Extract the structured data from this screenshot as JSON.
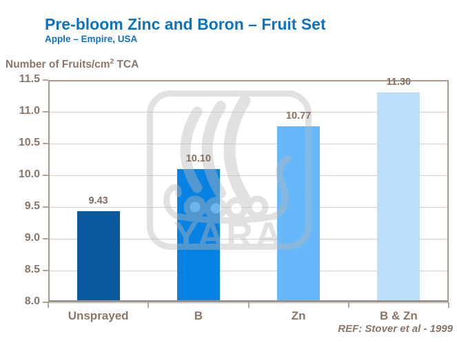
{
  "header": {
    "title": "Pre-bloom Zinc and Boron – Fruit Set",
    "subtitle": "Apple – Empire, USA"
  },
  "axis_title": {
    "prefix": "Number of Fruits/cm",
    "sup": "2",
    "suffix": " TCA"
  },
  "watermark": {
    "text": "YARA"
  },
  "footer": {
    "reference": "REF: Stover et al - 1999"
  },
  "colors": {
    "title_blue": "#0d72c2",
    "axis_text_brown": "#8a7668",
    "gridline": "#d8d1c6",
    "plot_border": "#a79a8a",
    "watermark_gray": "#b9b9b9",
    "bar_unsprayed": "#0a589d",
    "bar_b": "#0781e2",
    "bar_zn": "#66b8fb",
    "bar_b_zn": "#badefb"
  },
  "chart_data": {
    "type": "bar",
    "title": "Pre-bloom Zinc and Boron – Fruit Set",
    "subtitle": "Apple – Empire, USA",
    "ylabel": "Number of Fruits/cm² TCA",
    "xlabel": "",
    "categories": [
      "Unsprayed",
      "B",
      "Zn",
      "B & Zn"
    ],
    "values": [
      9.43,
      10.1,
      10.77,
      11.3
    ],
    "value_labels": [
      "9.43",
      "10.10",
      "10.77",
      "11.30"
    ],
    "bar_colors": [
      "#0a589d",
      "#0781e2",
      "#66b8fb",
      "#badefb"
    ],
    "ylim": [
      8.0,
      11.5
    ],
    "yticks": [
      8.0,
      8.5,
      9.0,
      9.5,
      10.0,
      10.5,
      11.0,
      11.5
    ],
    "ytick_decimals": 1,
    "grid": true,
    "legend": "none",
    "annotation": "REF: Stover et al - 1999"
  }
}
